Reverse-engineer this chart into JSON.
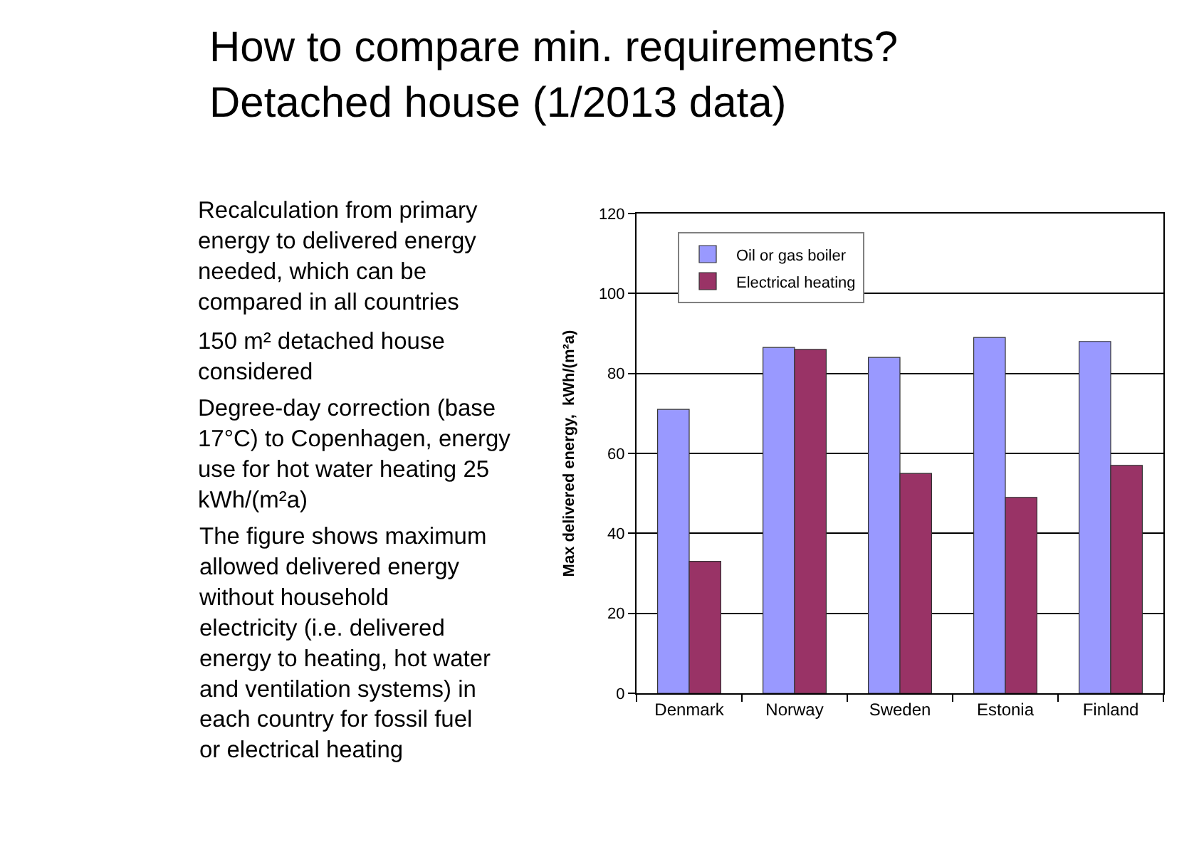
{
  "chart_data": {
    "type": "bar",
    "title": "How to compare min. requirements?\nDetached house (1/2013 data)",
    "ylabel": "Max delivered energy,  kWh/(m²a)",
    "categories": [
      "Denmark",
      "Norway",
      "Sweden",
      "Estonia",
      "Finland"
    ],
    "series": [
      {
        "name": "Oil or gas boiler",
        "color": "#9999ff",
        "values": [
          71,
          86.5,
          84,
          89,
          88
        ]
      },
      {
        "name": "Electrical heating",
        "color": "#993366",
        "values": [
          33,
          86,
          55,
          49,
          57
        ]
      }
    ],
    "ylim": [
      0,
      120
    ],
    "yticks": [
      0,
      20,
      40,
      60,
      80,
      100,
      120
    ],
    "grid": "y",
    "legend": "top left",
    "annotations": [
      "Recalculation from primary energy to delivered energy needed, which can be compared in all countries",
      "150 m² detached house considered",
      "Degree-day correction (base 17°C) to Copenhagen, energy use for hot water heating 25 kWh/(m²a)",
      "The figure shows maximum allowed delivered energy without household electricity (i.e. delivered energy to heating, hot water and ventilation systems) in each country for fossil fuel or electrical heating"
    ]
  }
}
